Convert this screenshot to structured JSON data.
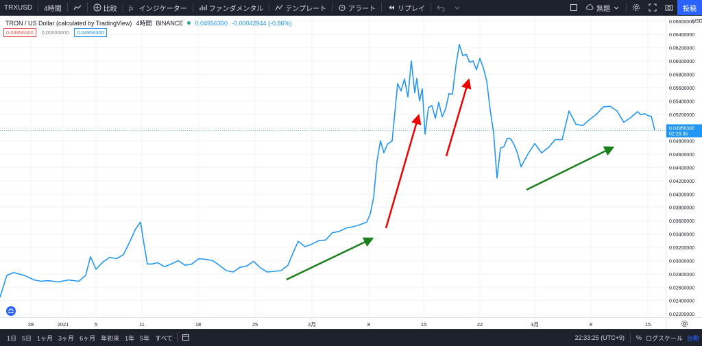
{
  "toolbar": {
    "symbol": "TRXUSD",
    "interval": "4時間",
    "compare": "比較",
    "indicators": "インジケーター",
    "fundamentals": "ファンダメンタル",
    "templates": "テンプレート",
    "alerts": "アラート",
    "replay": "リプレイ",
    "cloud": "無題",
    "post": "投稿"
  },
  "legend": {
    "title": "TRON / US Dollar (calculated by TradingView)",
    "interval": "4時間",
    "exchange": "BINANCE",
    "last": "0.04956300",
    "change": "-0.00042944 (-0.86%)",
    "ohlc_a": "0.04956300",
    "ohlc_b": "0.00000000",
    "ohlc_c": "0.04956300"
  },
  "price_axis": {
    "currency": "USD",
    "ticks": [
      "0.06600000",
      "0.06400000",
      "0.06200000",
      "0.06000000",
      "0.05800000",
      "0.05600000",
      "0.05400000",
      "0.05200000",
      "0.04800000",
      "0.04600000",
      "0.04400000",
      "0.04200000",
      "0.04000000",
      "0.03800000",
      "0.03600000",
      "0.03400000",
      "0.03200000",
      "0.03000000",
      "0.02800000",
      "0.02600000",
      "0.02400000",
      "0.02200000"
    ],
    "current_price": "0.04956300",
    "countdown": "02:26:35"
  },
  "time_axis": {
    "labels": [
      "28",
      "2021",
      "5",
      "11",
      "18",
      "25",
      "2月",
      "8",
      "15",
      "22",
      "3月",
      "8",
      "15"
    ]
  },
  "bottom": {
    "ranges": [
      "1日",
      "5日",
      "1ヶ月",
      "3ヶ月",
      "6ヶ月",
      "年初来",
      "1年",
      "5年",
      "すべて"
    ],
    "clock": "22:33:25 (UTC+9)",
    "percent": "%",
    "log": "ログスケール",
    "auto": "自動"
  },
  "colors": {
    "line": "#2196f3",
    "arrow_red": "#ee0000",
    "arrow_green": "#1a7f1a",
    "accent": "#2962ff"
  },
  "chart_data": {
    "type": "line",
    "ylim": [
      0.0215,
      0.0668
    ],
    "x": [
      0,
      10,
      20,
      35,
      50,
      60,
      70,
      85,
      100,
      115,
      125,
      132,
      140,
      150,
      160,
      170,
      180,
      190,
      198,
      205,
      210,
      215,
      222,
      230,
      240,
      250,
      260,
      270,
      280,
      290,
      300,
      310,
      320,
      330,
      340,
      350,
      360,
      370,
      380,
      390,
      400,
      410,
      420,
      428,
      435,
      445,
      455,
      465,
      475,
      485,
      495,
      505,
      515,
      525,
      535,
      540,
      545,
      550,
      555,
      560,
      565,
      572,
      580,
      585,
      590,
      595,
      600,
      605,
      608,
      612,
      616,
      620,
      625,
      630,
      635,
      640,
      645,
      650,
      655,
      660,
      665,
      670,
      675,
      680,
      685,
      690,
      695,
      700,
      705,
      710,
      715,
      720,
      725,
      730,
      735,
      740,
      745,
      750,
      755,
      760,
      770,
      780,
      790,
      800,
      810,
      820,
      830,
      840,
      850,
      860,
      870,
      880,
      890,
      900,
      910,
      920,
      930,
      935,
      940,
      945,
      950,
      955
    ],
    "y": [
      0.0245,
      0.0278,
      0.0282,
      0.0278,
      0.0271,
      0.0269,
      0.027,
      0.0268,
      0.0271,
      0.0269,
      0.0278,
      0.0306,
      0.0287,
      0.0298,
      0.0305,
      0.0303,
      0.0309,
      0.033,
      0.0348,
      0.0358,
      0.0325,
      0.0295,
      0.0295,
      0.0297,
      0.0291,
      0.0295,
      0.03,
      0.0293,
      0.0295,
      0.0303,
      0.0302,
      0.03,
      0.0293,
      0.0285,
      0.0283,
      0.029,
      0.0292,
      0.0299,
      0.0289,
      0.0283,
      0.0284,
      0.0285,
      0.0293,
      0.0313,
      0.0329,
      0.0321,
      0.0325,
      0.033,
      0.0331,
      0.0342,
      0.0344,
      0.0349,
      0.0351,
      0.0354,
      0.0358,
      0.037,
      0.0395,
      0.045,
      0.048,
      0.0462,
      0.0475,
      0.048,
      0.0566,
      0.0555,
      0.0573,
      0.0546,
      0.06,
      0.0552,
      0.0574,
      0.054,
      0.0558,
      0.049,
      0.053,
      0.0533,
      0.0514,
      0.0538,
      0.0516,
      0.0528,
      0.0551,
      0.055,
      0.0593,
      0.0625,
      0.0608,
      0.061,
      0.0598,
      0.06,
      0.0587,
      0.0604,
      0.059,
      0.057,
      0.0527,
      0.0492,
      0.0424,
      0.0469,
      0.0471,
      0.0484,
      0.0483,
      0.0474,
      0.0461,
      0.0441,
      0.046,
      0.0476,
      0.0462,
      0.047,
      0.0482,
      0.0482,
      0.0525,
      0.0505,
      0.0503,
      0.0512,
      0.052,
      0.0531,
      0.0532,
      0.0525,
      0.0508,
      0.0515,
      0.0524,
      0.0519,
      0.0521,
      0.0518,
      0.0517,
      0.0496
    ]
  }
}
